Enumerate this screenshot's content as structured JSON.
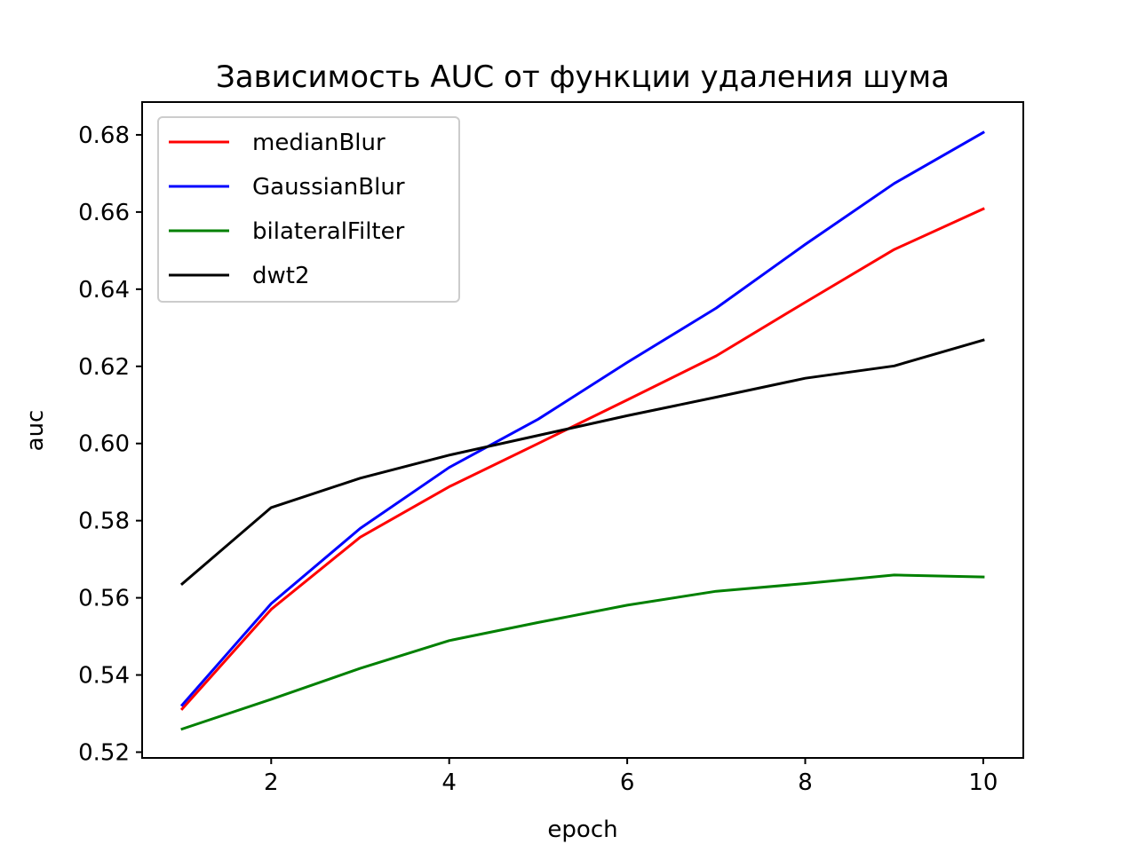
{
  "chart_data": {
    "type": "line",
    "title": "Зависимость AUC от функции удаления шума",
    "xlabel": "epoch",
    "ylabel": "auc",
    "x": [
      1,
      2,
      3,
      4,
      5,
      6,
      7,
      8,
      9,
      10
    ],
    "xlim": [
      0.55,
      10.45
    ],
    "ylim": [
      0.5185,
      0.6885
    ],
    "xticks": [
      2,
      4,
      6,
      8,
      10
    ],
    "yticks": [
      0.52,
      0.54,
      0.56,
      0.58,
      0.6,
      0.62,
      0.64,
      0.66,
      0.68
    ],
    "grid": false,
    "legend_position": "top-left",
    "series": [
      {
        "name": "medianBlur",
        "color": "#ff0000",
        "values": [
          0.5312,
          0.557,
          0.5757,
          0.5888,
          0.6,
          0.6113,
          0.6227,
          0.6366,
          0.6503,
          0.6608
        ]
      },
      {
        "name": "GaussianBlur",
        "color": "#0000ff",
        "values": [
          0.5322,
          0.5585,
          0.578,
          0.5938,
          0.6063,
          0.621,
          0.6351,
          0.6516,
          0.6674,
          0.6806
        ]
      },
      {
        "name": "bilateralFilter",
        "color": "#008000",
        "values": [
          0.526,
          0.5337,
          0.5417,
          0.5489,
          0.5536,
          0.5581,
          0.5617,
          0.5637,
          0.5659,
          0.5654
        ]
      },
      {
        "name": "dwt2",
        "color": "#000000",
        "values": [
          0.5636,
          0.5834,
          0.591,
          0.597,
          0.6021,
          0.6072,
          0.612,
          0.6169,
          0.6201,
          0.6268
        ]
      }
    ]
  }
}
